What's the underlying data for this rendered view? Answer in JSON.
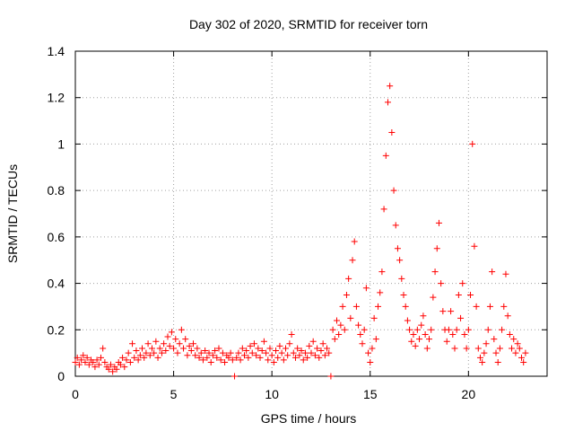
{
  "chart_data": {
    "type": "scatter",
    "title": "Day 302 of 2020, SRMTID for receiver torn",
    "xlabel": "GPS time / hours",
    "ylabel": "SRMTID / TECUs",
    "xlim": [
      0,
      24
    ],
    "ylim": [
      0,
      1.4
    ],
    "xticks": [
      0,
      5,
      10,
      15,
      20
    ],
    "yticks": [
      0,
      0.2,
      0.4,
      0.6,
      0.8,
      1,
      1.2,
      1.4
    ],
    "xtick_labels": [
      "0",
      "5",
      "10",
      "15",
      "20"
    ],
    "ytick_labels": [
      "0",
      "0.2",
      "0.4",
      "0.6",
      "0.8",
      "1",
      "1.2",
      "1.4"
    ],
    "grid": true,
    "marker": "+",
    "color": "#ff0000",
    "series": [
      {
        "name": "SRMTID",
        "points": [
          [
            0.0,
            0.06
          ],
          [
            0.1,
            0.08
          ],
          [
            0.2,
            0.05
          ],
          [
            0.3,
            0.07
          ],
          [
            0.4,
            0.09
          ],
          [
            0.5,
            0.06
          ],
          [
            0.6,
            0.08
          ],
          [
            0.7,
            0.05
          ],
          [
            0.8,
            0.07
          ],
          [
            0.9,
            0.06
          ],
          [
            1.0,
            0.04
          ],
          [
            1.1,
            0.07
          ],
          [
            1.2,
            0.05
          ],
          [
            1.3,
            0.08
          ],
          [
            1.4,
            0.12
          ],
          [
            1.5,
            0.06
          ],
          [
            1.6,
            0.04
          ],
          [
            1.7,
            0.03
          ],
          [
            1.8,
            0.05
          ],
          [
            1.9,
            0.02
          ],
          [
            2.0,
            0.04
          ],
          [
            2.1,
            0.03
          ],
          [
            2.2,
            0.06
          ],
          [
            2.3,
            0.05
          ],
          [
            2.4,
            0.08
          ],
          [
            2.5,
            0.04
          ],
          [
            2.6,
            0.07
          ],
          [
            2.7,
            0.1
          ],
          [
            2.8,
            0.06
          ],
          [
            2.9,
            0.14
          ],
          [
            3.0,
            0.08
          ],
          [
            3.1,
            0.11
          ],
          [
            3.2,
            0.07
          ],
          [
            3.3,
            0.09
          ],
          [
            3.4,
            0.12
          ],
          [
            3.5,
            0.08
          ],
          [
            3.6,
            0.1
          ],
          [
            3.7,
            0.14
          ],
          [
            3.8,
            0.09
          ],
          [
            3.9,
            0.12
          ],
          [
            4.0,
            0.1
          ],
          [
            4.1,
            0.15
          ],
          [
            4.2,
            0.08
          ],
          [
            4.3,
            0.12
          ],
          [
            4.4,
            0.1
          ],
          [
            4.5,
            0.14
          ],
          [
            4.6,
            0.11
          ],
          [
            4.7,
            0.17
          ],
          [
            4.8,
            0.13
          ],
          [
            4.9,
            0.19
          ],
          [
            5.0,
            0.12
          ],
          [
            5.1,
            0.16
          ],
          [
            5.2,
            0.1
          ],
          [
            5.3,
            0.14
          ],
          [
            5.4,
            0.2
          ],
          [
            5.5,
            0.12
          ],
          [
            5.6,
            0.16
          ],
          [
            5.7,
            0.09
          ],
          [
            5.8,
            0.13
          ],
          [
            5.9,
            0.11
          ],
          [
            6.0,
            0.14
          ],
          [
            6.1,
            0.09
          ],
          [
            6.2,
            0.12
          ],
          [
            6.3,
            0.08
          ],
          [
            6.4,
            0.1
          ],
          [
            6.5,
            0.07
          ],
          [
            6.6,
            0.11
          ],
          [
            6.7,
            0.08
          ],
          [
            6.8,
            0.1
          ],
          [
            6.9,
            0.06
          ],
          [
            7.0,
            0.09
          ],
          [
            7.1,
            0.11
          ],
          [
            7.2,
            0.08
          ],
          [
            7.3,
            0.12
          ],
          [
            7.4,
            0.07
          ],
          [
            7.5,
            0.1
          ],
          [
            7.6,
            0.06
          ],
          [
            7.7,
            0.09
          ],
          [
            7.8,
            0.08
          ],
          [
            7.9,
            0.1
          ],
          [
            8.0,
            0.07
          ],
          [
            8.1,
            0.0
          ],
          [
            8.2,
            0.08
          ],
          [
            8.3,
            0.1
          ],
          [
            8.4,
            0.07
          ],
          [
            8.5,
            0.12
          ],
          [
            8.6,
            0.09
          ],
          [
            8.7,
            0.11
          ],
          [
            8.8,
            0.08
          ],
          [
            8.9,
            0.13
          ],
          [
            9.0,
            0.1
          ],
          [
            9.1,
            0.14
          ],
          [
            9.2,
            0.09
          ],
          [
            9.3,
            0.12
          ],
          [
            9.4,
            0.08
          ],
          [
            9.5,
            0.11
          ],
          [
            9.6,
            0.15
          ],
          [
            9.7,
            0.1
          ],
          [
            9.8,
            0.07
          ],
          [
            9.9,
            0.12
          ],
          [
            10.0,
            0.09
          ],
          [
            10.1,
            0.06
          ],
          [
            10.2,
            0.11
          ],
          [
            10.3,
            0.08
          ],
          [
            10.4,
            0.13
          ],
          [
            10.5,
            0.1
          ],
          [
            10.6,
            0.07
          ],
          [
            10.7,
            0.12
          ],
          [
            10.8,
            0.09
          ],
          [
            10.9,
            0.14
          ],
          [
            11.0,
            0.18
          ],
          [
            11.1,
            0.1
          ],
          [
            11.2,
            0.08
          ],
          [
            11.3,
            0.12
          ],
          [
            11.4,
            0.09
          ],
          [
            11.5,
            0.11
          ],
          [
            11.6,
            0.07
          ],
          [
            11.7,
            0.1
          ],
          [
            11.8,
            0.08
          ],
          [
            11.9,
            0.13
          ],
          [
            12.0,
            0.1
          ],
          [
            12.1,
            0.15
          ],
          [
            12.2,
            0.09
          ],
          [
            12.3,
            0.12
          ],
          [
            12.4,
            0.08
          ],
          [
            12.5,
            0.11
          ],
          [
            12.6,
            0.14
          ],
          [
            12.7,
            0.09
          ],
          [
            12.8,
            0.12
          ],
          [
            12.9,
            0.1
          ],
          [
            13.0,
            0.0
          ],
          [
            13.1,
            0.2
          ],
          [
            13.2,
            0.16
          ],
          [
            13.3,
            0.24
          ],
          [
            13.4,
            0.18
          ],
          [
            13.5,
            0.22
          ],
          [
            13.6,
            0.3
          ],
          [
            13.7,
            0.2
          ],
          [
            13.8,
            0.35
          ],
          [
            13.9,
            0.42
          ],
          [
            14.0,
            0.25
          ],
          [
            14.1,
            0.5
          ],
          [
            14.2,
            0.58
          ],
          [
            14.3,
            0.3
          ],
          [
            14.4,
            0.22
          ],
          [
            14.5,
            0.18
          ],
          [
            14.6,
            0.14
          ],
          [
            14.7,
            0.2
          ],
          [
            14.8,
            0.38
          ],
          [
            14.9,
            0.1
          ],
          [
            15.0,
            0.06
          ],
          [
            15.1,
            0.12
          ],
          [
            15.2,
            0.25
          ],
          [
            15.3,
            0.16
          ],
          [
            15.4,
            0.3
          ],
          [
            15.5,
            0.36
          ],
          [
            15.6,
            0.45
          ],
          [
            15.7,
            0.72
          ],
          [
            15.8,
            0.95
          ],
          [
            15.9,
            1.18
          ],
          [
            16.0,
            1.25
          ],
          [
            16.1,
            1.05
          ],
          [
            16.2,
            0.8
          ],
          [
            16.3,
            0.65
          ],
          [
            16.4,
            0.55
          ],
          [
            16.5,
            0.5
          ],
          [
            16.6,
            0.42
          ],
          [
            16.7,
            0.35
          ],
          [
            16.8,
            0.3
          ],
          [
            16.9,
            0.24
          ],
          [
            17.0,
            0.2
          ],
          [
            17.1,
            0.15
          ],
          [
            17.2,
            0.18
          ],
          [
            17.3,
            0.13
          ],
          [
            17.4,
            0.2
          ],
          [
            17.5,
            0.16
          ],
          [
            17.6,
            0.22
          ],
          [
            17.7,
            0.26
          ],
          [
            17.8,
            0.18
          ],
          [
            17.9,
            0.12
          ],
          [
            18.0,
            0.16
          ],
          [
            18.1,
            0.2
          ],
          [
            18.2,
            0.34
          ],
          [
            18.3,
            0.45
          ],
          [
            18.4,
            0.55
          ],
          [
            18.5,
            0.66
          ],
          [
            18.6,
            0.4
          ],
          [
            18.7,
            0.28
          ],
          [
            18.8,
            0.2
          ],
          [
            18.9,
            0.15
          ],
          [
            19.0,
            0.2
          ],
          [
            19.1,
            0.28
          ],
          [
            19.2,
            0.18
          ],
          [
            19.3,
            0.12
          ],
          [
            19.4,
            0.2
          ],
          [
            19.5,
            0.35
          ],
          [
            19.6,
            0.25
          ],
          [
            19.7,
            0.4
          ],
          [
            19.8,
            0.18
          ],
          [
            19.9,
            0.12
          ],
          [
            20.0,
            0.2
          ],
          [
            20.1,
            0.35
          ],
          [
            20.2,
            1.0
          ],
          [
            20.3,
            0.56
          ],
          [
            20.4,
            0.3
          ],
          [
            20.5,
            0.12
          ],
          [
            20.6,
            0.08
          ],
          [
            20.7,
            0.06
          ],
          [
            20.8,
            0.1
          ],
          [
            20.9,
            0.14
          ],
          [
            21.0,
            0.2
          ],
          [
            21.1,
            0.3
          ],
          [
            21.2,
            0.45
          ],
          [
            21.3,
            0.16
          ],
          [
            21.4,
            0.1
          ],
          [
            21.5,
            0.06
          ],
          [
            21.6,
            0.12
          ],
          [
            21.7,
            0.2
          ],
          [
            21.8,
            0.3
          ],
          [
            21.9,
            0.44
          ],
          [
            22.0,
            0.26
          ],
          [
            22.1,
            0.18
          ],
          [
            22.2,
            0.12
          ],
          [
            22.3,
            0.16
          ],
          [
            22.4,
            0.1
          ],
          [
            22.5,
            0.14
          ],
          [
            22.6,
            0.12
          ],
          [
            22.7,
            0.08
          ],
          [
            22.8,
            0.06
          ],
          [
            22.9,
            0.1
          ]
        ]
      }
    ]
  }
}
